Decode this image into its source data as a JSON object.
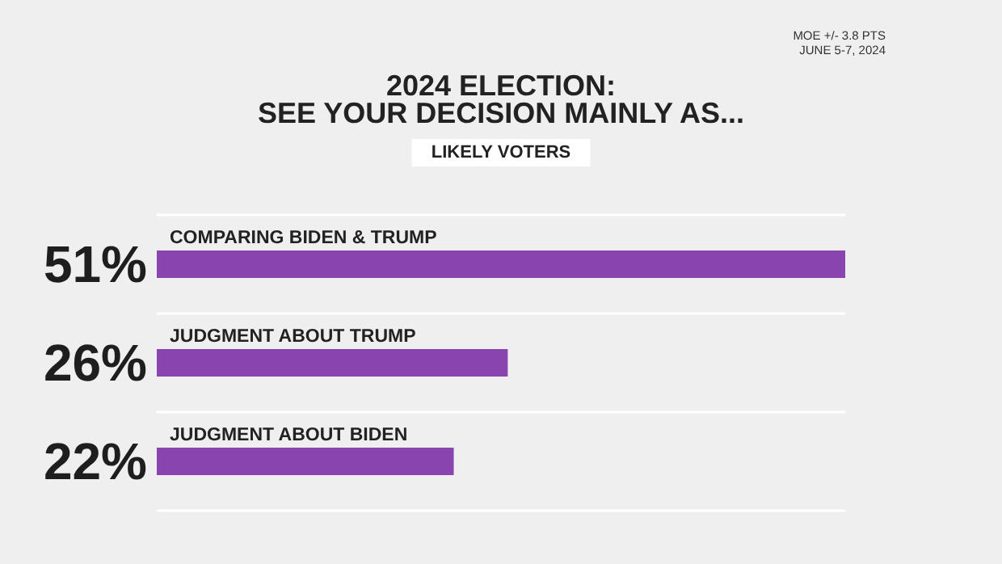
{
  "chart_data": {
    "type": "bar",
    "orientation": "horizontal",
    "title": "2024 ELECTION:\nSEE YOUR DECISION MAINLY AS...",
    "subtitle": "LIKELY VOTERS",
    "annotations": [
      "MOE +/- 3.8 PTS",
      "JUNE 5-7, 2024"
    ],
    "categories": [
      "COMPARING BIDEN & TRUMP",
      "JUDGMENT ABOUT TRUMP",
      "JUDGMENT ABOUT BIDEN"
    ],
    "values": [
      51,
      26,
      22
    ],
    "value_labels": [
      "51%",
      "26%",
      "22%"
    ],
    "color": "#8a44b0",
    "grid": "y"
  }
}
